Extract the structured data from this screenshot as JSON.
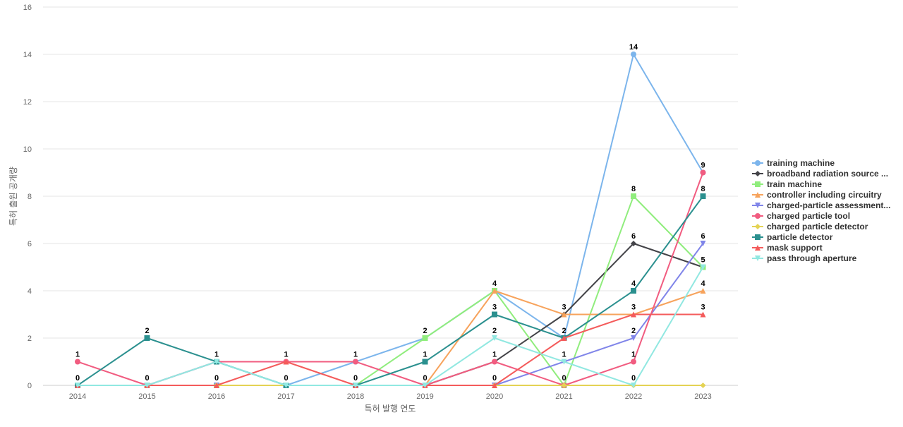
{
  "chart_data": {
    "type": "line",
    "xlabel": "특허 발행 연도",
    "ylabel": "특허 출원 공개량",
    "ylim": [
      0,
      16
    ],
    "yticks": [
      0,
      2,
      4,
      6,
      8,
      10,
      12,
      14,
      16
    ],
    "grid": true,
    "legend_position": "right",
    "categories": [
      "2014",
      "2015",
      "2016",
      "2017",
      "2018",
      "2019",
      "2020",
      "2021",
      "2022",
      "2023"
    ],
    "series": [
      {
        "name": "training machine",
        "color": "#7cb5ec",
        "marker": "circle",
        "values": [
          0,
          0,
          1,
          0,
          1,
          2,
          4,
          2,
          14,
          9
        ]
      },
      {
        "name": "broadband radiation source ...",
        "color": "#434348",
        "marker": "diamond",
        "values": [
          0,
          0,
          0,
          0,
          0,
          0,
          1,
          3,
          6,
          5
        ]
      },
      {
        "name": "train machine",
        "color": "#90ed7d",
        "marker": "square",
        "values": [
          0,
          0,
          0,
          0,
          0,
          2,
          4,
          0,
          8,
          5
        ]
      },
      {
        "name": "controller including circuitry",
        "color": "#f7a35c",
        "marker": "triangle",
        "values": [
          0,
          0,
          0,
          0,
          0,
          0,
          4,
          3,
          3,
          4
        ]
      },
      {
        "name": "charged-particle assessment...",
        "color": "#8085e9",
        "marker": "triangle-down",
        "values": [
          0,
          0,
          0,
          0,
          0,
          0,
          0,
          1,
          2,
          6
        ]
      },
      {
        "name": "charged particle tool",
        "color": "#f15c80",
        "marker": "circle",
        "values": [
          1,
          0,
          1,
          1,
          1,
          0,
          1,
          0,
          1,
          9
        ]
      },
      {
        "name": "charged particle detector",
        "color": "#e4d354",
        "marker": "diamond",
        "values": [
          0,
          0,
          0,
          0,
          0,
          0,
          0,
          0,
          0,
          0
        ]
      },
      {
        "name": "particle detector",
        "color": "#2b908f",
        "marker": "square",
        "values": [
          0,
          2,
          1,
          0,
          0,
          1,
          3,
          2,
          4,
          8
        ]
      },
      {
        "name": "mask support",
        "color": "#f45b5b",
        "marker": "triangle",
        "values": [
          0,
          0,
          0,
          1,
          0,
          0,
          0,
          2,
          3,
          3
        ]
      },
      {
        "name": "pass through aperture",
        "color": "#91e8e1",
        "marker": "triangle-down",
        "values": [
          0,
          0,
          1,
          0,
          0,
          0,
          2,
          1,
          0,
          5
        ]
      }
    ],
    "data_labels": [
      {
        "x": "2014",
        "series": "charged particle tool",
        "text": "1"
      },
      {
        "x": "2014",
        "series": "particle detector",
        "text": "0"
      },
      {
        "x": "2015",
        "series": "particle detector",
        "text": "2"
      },
      {
        "x": "2015",
        "series": "charged particle tool",
        "text": "0"
      },
      {
        "x": "2016",
        "series": "particle detector",
        "text": "1"
      },
      {
        "x": "2016",
        "series": "mask support",
        "text": "0"
      },
      {
        "x": "2017",
        "series": "charged particle tool",
        "text": "1"
      },
      {
        "x": "2017",
        "series": "particle detector",
        "text": "0"
      },
      {
        "x": "2018",
        "series": "charged particle tool",
        "text": "1"
      },
      {
        "x": "2018",
        "series": "particle detector",
        "text": "0"
      },
      {
        "x": "2019",
        "series": "train machine",
        "text": "2"
      },
      {
        "x": "2019",
        "series": "particle detector",
        "text": "1"
      },
      {
        "x": "2019",
        "series": "charged particle tool",
        "text": "0"
      },
      {
        "x": "2020",
        "series": "train machine",
        "text": "4"
      },
      {
        "x": "2020",
        "series": "particle detector",
        "text": "3"
      },
      {
        "x": "2020",
        "series": "pass through aperture",
        "text": "2"
      },
      {
        "x": "2020",
        "series": "charged particle tool",
        "text": "1"
      },
      {
        "x": "2020",
        "series": "mask support",
        "text": "0"
      },
      {
        "x": "2021",
        "series": "controller including circuitry",
        "text": "3"
      },
      {
        "x": "2021",
        "series": "particle detector",
        "text": "2"
      },
      {
        "x": "2021",
        "series": "charged-particle assessment...",
        "text": "1"
      },
      {
        "x": "2021",
        "series": "charged particle tool",
        "text": "0"
      },
      {
        "x": "2022",
        "series": "training machine",
        "text": "14"
      },
      {
        "x": "2022",
        "series": "train machine",
        "text": "8"
      },
      {
        "x": "2022",
        "series": "broadband radiation source ...",
        "text": "6"
      },
      {
        "x": "2022",
        "series": "particle detector",
        "text": "4"
      },
      {
        "x": "2022",
        "series": "mask support",
        "text": "3"
      },
      {
        "x": "2022",
        "series": "charged-particle assessment...",
        "text": "2"
      },
      {
        "x": "2022",
        "series": "charged particle tool",
        "text": "1"
      },
      {
        "x": "2022",
        "series": "pass through aperture",
        "text": "0"
      },
      {
        "x": "2023",
        "series": "training machine",
        "text": "9"
      },
      {
        "x": "2023",
        "series": "particle detector",
        "text": "8"
      },
      {
        "x": "2023",
        "series": "charged-particle assessment...",
        "text": "6"
      },
      {
        "x": "2023",
        "series": "train machine",
        "text": "5"
      },
      {
        "x": "2023",
        "series": "controller including circuitry",
        "text": "4"
      },
      {
        "x": "2023",
        "series": "mask support",
        "text": "3"
      }
    ]
  }
}
